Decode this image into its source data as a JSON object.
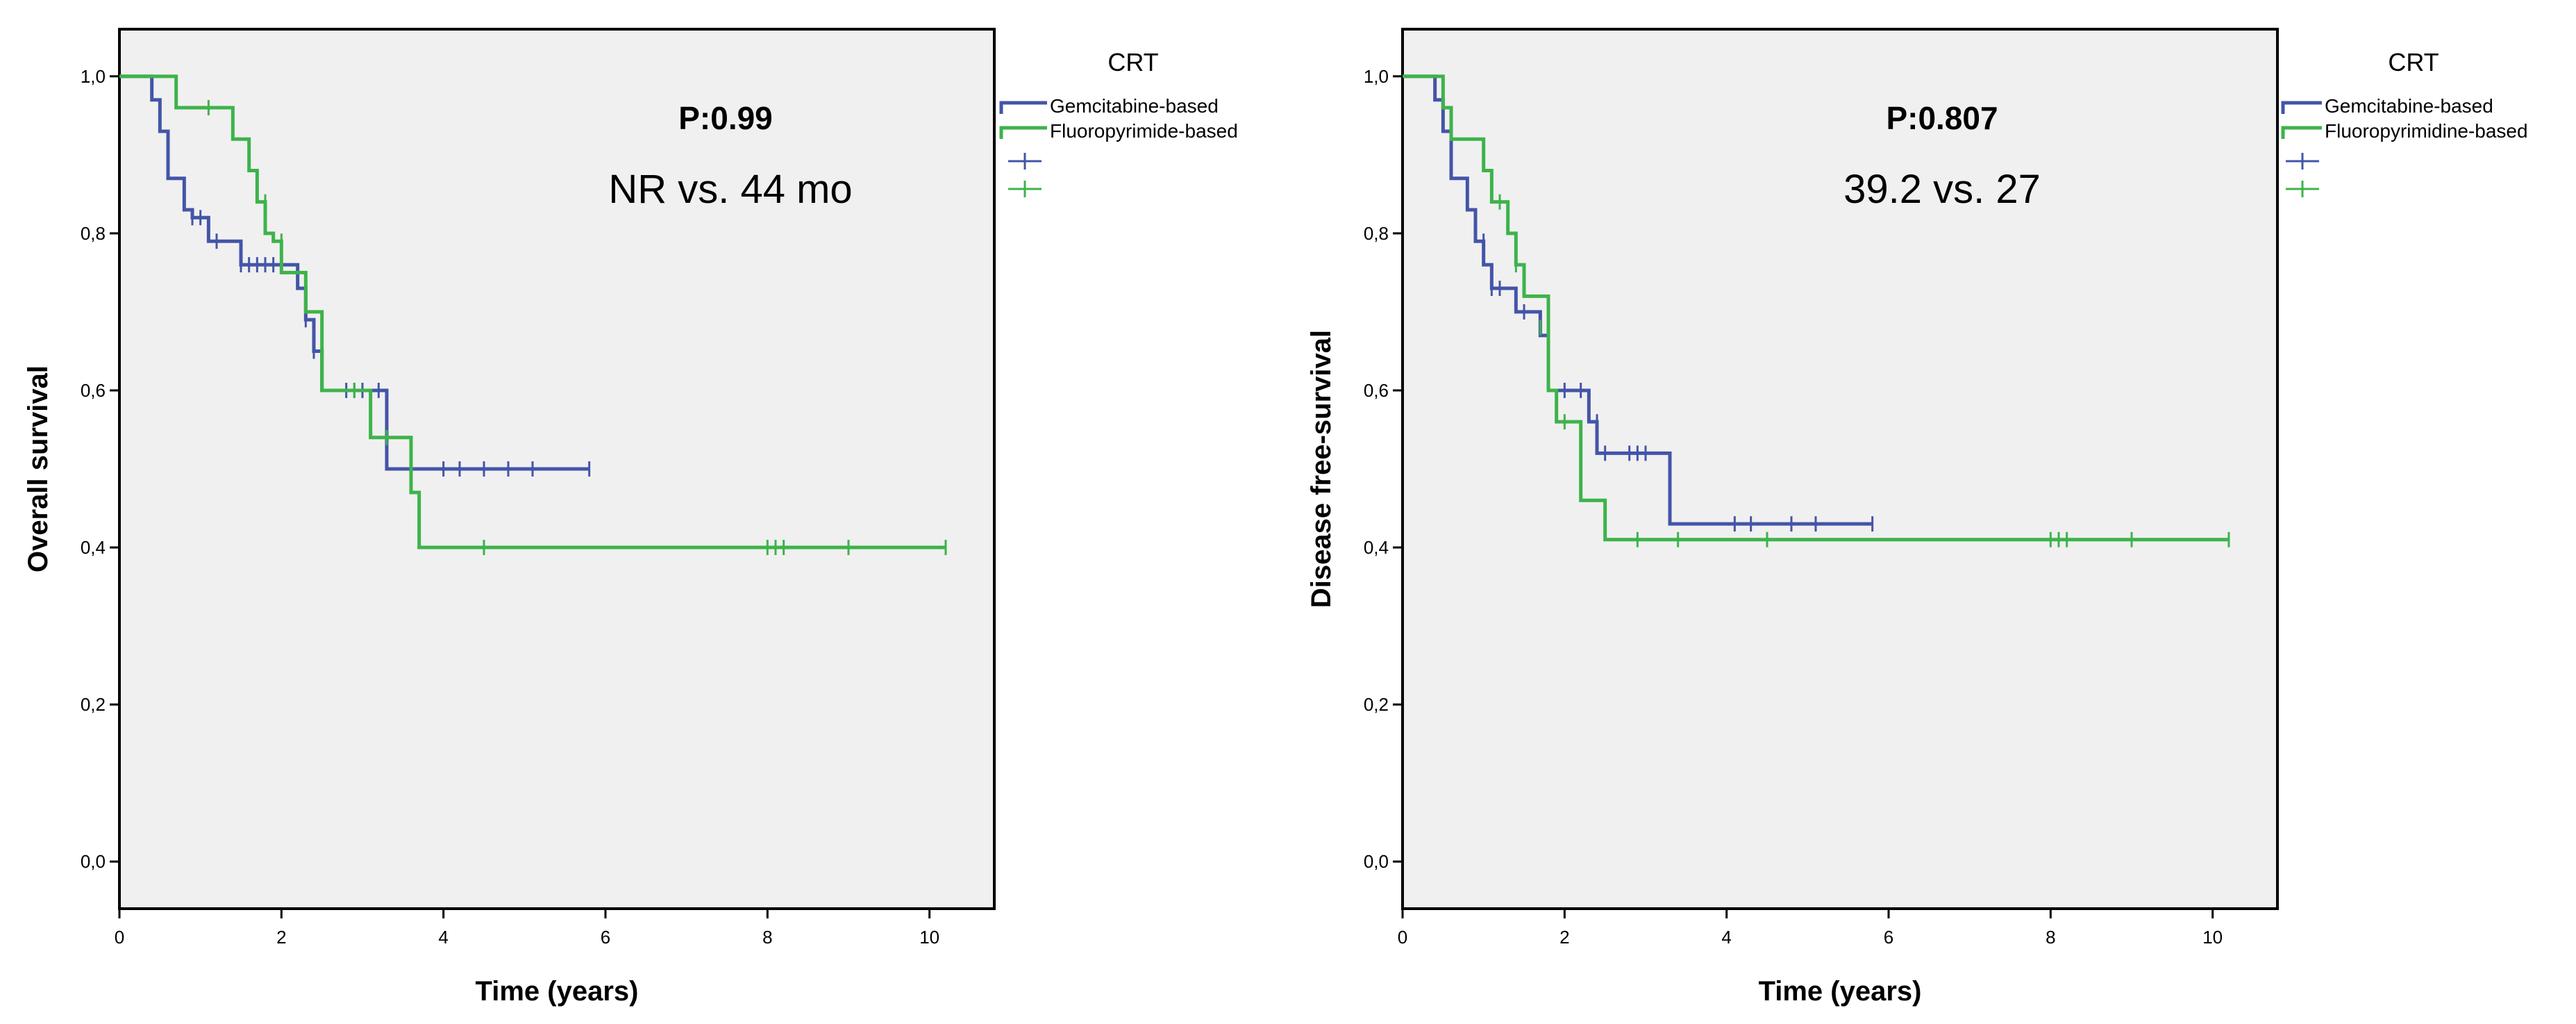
{
  "chart_data": [
    {
      "type": "line",
      "subtype": "kaplan-meier",
      "xlabel": "Time (years)",
      "ylabel": "Overall survival",
      "xlim": [
        0,
        10.8
      ],
      "ylim": [
        -0.06,
        1.06
      ],
      "x_ticks": [
        0,
        2,
        4,
        6,
        8,
        10
      ],
      "x_tick_labels": [
        "0",
        "2",
        "4",
        "6",
        "8",
        "10"
      ],
      "y_ticks": [
        0,
        0.2,
        0.4,
        0.6,
        0.8,
        1.0
      ],
      "y_tick_labels": [
        "0,0",
        "0,2",
        "0,4",
        "0,6",
        "0,8",
        "1,0"
      ],
      "p_value_text": "P:0.99",
      "median_text": "NR vs. 44 mo",
      "legend": {
        "title": "CRT",
        "placement": "outside-top-right",
        "entries": [
          "Gemcitabine-based",
          "Fluoropyrimide-based",
          "",
          ""
        ]
      },
      "series": [
        {
          "name": "Gemcitabine-based",
          "color": "#4355a8",
          "steps": [
            [
              0,
              1.0
            ],
            [
              0.4,
              0.97
            ],
            [
              0.5,
              0.93
            ],
            [
              0.6,
              0.87
            ],
            [
              0.8,
              0.83
            ],
            [
              0.9,
              0.82
            ],
            [
              1.1,
              0.79
            ],
            [
              1.5,
              0.76
            ],
            [
              2.2,
              0.73
            ],
            [
              2.3,
              0.69
            ],
            [
              2.4,
              0.65
            ],
            [
              2.5,
              0.6
            ],
            [
              3.3,
              0.5
            ],
            [
              5.8,
              0.5
            ]
          ],
          "censored": [
            [
              0.9,
              0.82
            ],
            [
              1.0,
              0.82
            ],
            [
              1.2,
              0.79
            ],
            [
              1.5,
              0.76
            ],
            [
              1.6,
              0.76
            ],
            [
              1.7,
              0.76
            ],
            [
              1.8,
              0.76
            ],
            [
              1.9,
              0.76
            ],
            [
              2.3,
              0.69
            ],
            [
              2.4,
              0.65
            ],
            [
              2.8,
              0.6
            ],
            [
              2.9,
              0.6
            ],
            [
              3.0,
              0.6
            ],
            [
              3.2,
              0.6
            ],
            [
              4.0,
              0.5
            ],
            [
              4.2,
              0.5
            ],
            [
              4.5,
              0.5
            ],
            [
              4.8,
              0.5
            ],
            [
              5.1,
              0.5
            ],
            [
              5.8,
              0.5
            ]
          ]
        },
        {
          "name": "Fluoropyrimide-based",
          "color": "#3db34a",
          "steps": [
            [
              0,
              1.0
            ],
            [
              0.7,
              0.96
            ],
            [
              1.4,
              0.92
            ],
            [
              1.6,
              0.88
            ],
            [
              1.7,
              0.84
            ],
            [
              1.8,
              0.8
            ],
            [
              1.9,
              0.79
            ],
            [
              2.0,
              0.75
            ],
            [
              2.3,
              0.7
            ],
            [
              2.5,
              0.6
            ],
            [
              2.9,
              0.6
            ],
            [
              3.1,
              0.54
            ],
            [
              3.6,
              0.47
            ],
            [
              3.7,
              0.4
            ],
            [
              10.2,
              0.4
            ]
          ],
          "censored": [
            [
              1.1,
              0.96
            ],
            [
              1.8,
              0.84
            ],
            [
              2.0,
              0.79
            ],
            [
              2.9,
              0.6
            ],
            [
              3.3,
              0.54
            ],
            [
              4.5,
              0.4
            ],
            [
              8.0,
              0.4
            ],
            [
              8.1,
              0.4
            ],
            [
              8.2,
              0.4
            ],
            [
              9.0,
              0.4
            ],
            [
              10.2,
              0.4
            ]
          ]
        }
      ]
    },
    {
      "type": "line",
      "subtype": "kaplan-meier",
      "xlabel": "Time (years)",
      "ylabel": "Disease free-survival",
      "xlim": [
        0,
        10.8
      ],
      "ylim": [
        -0.06,
        1.06
      ],
      "x_ticks": [
        0,
        2,
        4,
        6,
        8,
        10
      ],
      "x_tick_labels": [
        "0",
        "2",
        "4",
        "6",
        "8",
        "10"
      ],
      "y_ticks": [
        0,
        0.2,
        0.4,
        0.6,
        0.8,
        1.0
      ],
      "y_tick_labels": [
        "0,0",
        "0,2",
        "0,4",
        "0,6",
        "0,8",
        "1,0"
      ],
      "p_value_text": "P:0.807",
      "median_text": "39.2 vs. 27",
      "legend": {
        "title": "CRT",
        "placement": "outside-top-right",
        "entries": [
          "Gemcitabine-based",
          "Fluoropyrimidine-based",
          "",
          ""
        ]
      },
      "series": [
        {
          "name": "Gemcitabine-based",
          "color": "#4355a8",
          "steps": [
            [
              0,
              1.0
            ],
            [
              0.4,
              0.97
            ],
            [
              0.5,
              0.93
            ],
            [
              0.6,
              0.87
            ],
            [
              0.8,
              0.83
            ],
            [
              0.9,
              0.79
            ],
            [
              1.0,
              0.76
            ],
            [
              1.1,
              0.73
            ],
            [
              1.4,
              0.7
            ],
            [
              1.7,
              0.67
            ],
            [
              1.8,
              0.6
            ],
            [
              2.3,
              0.56
            ],
            [
              2.4,
              0.52
            ],
            [
              3.3,
              0.43
            ],
            [
              5.8,
              0.43
            ]
          ],
          "censored": [
            [
              0.6,
              0.9
            ],
            [
              0.9,
              0.82
            ],
            [
              1.0,
              0.79
            ],
            [
              1.1,
              0.73
            ],
            [
              1.2,
              0.73
            ],
            [
              1.5,
              0.7
            ],
            [
              2.0,
              0.6
            ],
            [
              2.2,
              0.6
            ],
            [
              2.4,
              0.56
            ],
            [
              2.5,
              0.52
            ],
            [
              2.8,
              0.52
            ],
            [
              2.9,
              0.52
            ],
            [
              3.0,
              0.52
            ],
            [
              4.1,
              0.43
            ],
            [
              4.3,
              0.43
            ],
            [
              4.8,
              0.43
            ],
            [
              5.1,
              0.43
            ],
            [
              5.8,
              0.43
            ]
          ]
        },
        {
          "name": "Fluoropyrimidine-based",
          "color": "#3db34a",
          "steps": [
            [
              0,
              1.0
            ],
            [
              0.5,
              0.96
            ],
            [
              0.6,
              0.92
            ],
            [
              1.0,
              0.88
            ],
            [
              1.1,
              0.84
            ],
            [
              1.3,
              0.8
            ],
            [
              1.4,
              0.76
            ],
            [
              1.5,
              0.72
            ],
            [
              1.8,
              0.6
            ],
            [
              1.9,
              0.56
            ],
            [
              2.2,
              0.46
            ],
            [
              2.5,
              0.41
            ],
            [
              10.2,
              0.41
            ]
          ],
          "censored": [
            [
              1.2,
              0.84
            ],
            [
              1.4,
              0.76
            ],
            [
              1.7,
              0.68
            ],
            [
              2.0,
              0.56
            ],
            [
              2.9,
              0.41
            ],
            [
              3.4,
              0.41
            ],
            [
              4.5,
              0.41
            ],
            [
              8.0,
              0.41
            ],
            [
              8.1,
              0.41
            ],
            [
              8.2,
              0.41
            ],
            [
              9.0,
              0.41
            ],
            [
              10.2,
              0.41
            ]
          ]
        }
      ]
    }
  ]
}
